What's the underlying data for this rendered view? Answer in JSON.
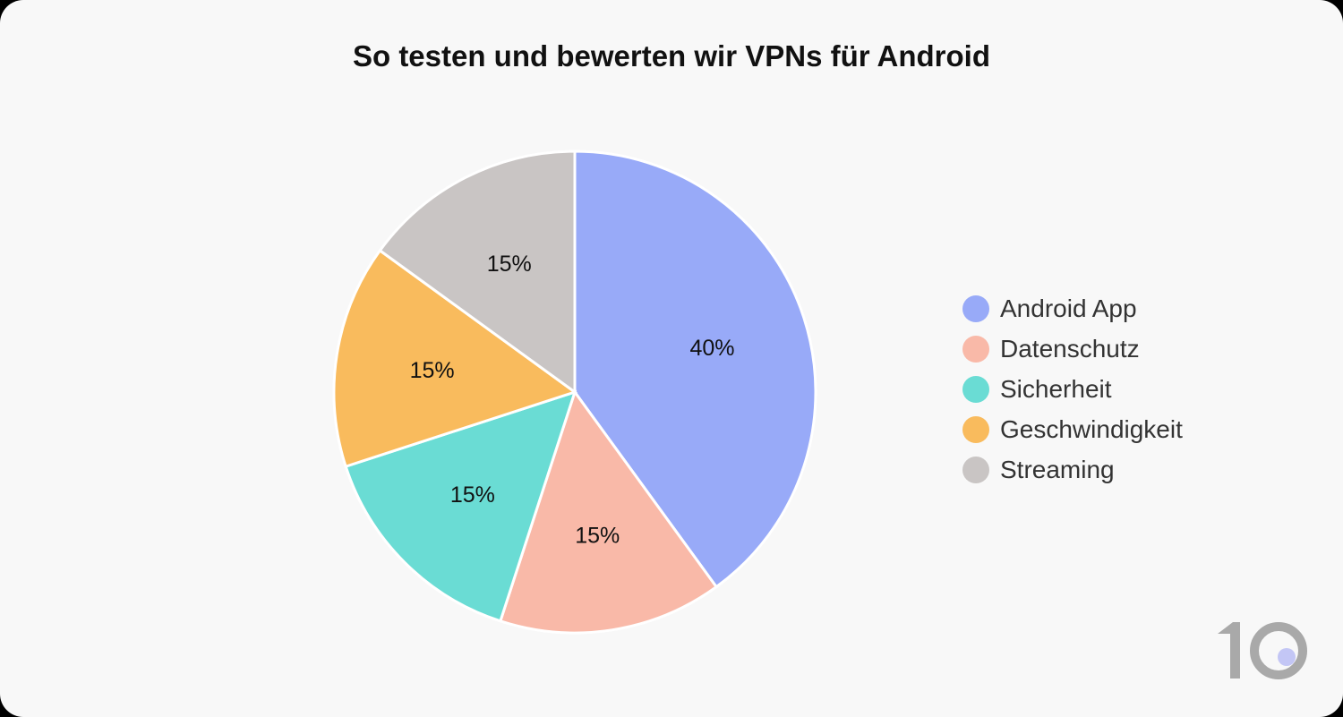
{
  "chart_data": {
    "type": "pie",
    "title": "So testen und bewerten wir VPNs für Android",
    "categories": [
      "Android App",
      "Datenschutz",
      "Sicherheit",
      "Geschwindigkeit",
      "Streaming"
    ],
    "values": [
      40,
      15,
      15,
      15,
      15
    ],
    "labels": [
      "40%",
      "15%",
      "15%",
      "15%",
      "15%"
    ],
    "colors": [
      "#98aaf8",
      "#f9b9a8",
      "#6adcd4",
      "#f9bb5d",
      "#c9c5c4"
    ],
    "start_angle": "12 o'clock",
    "direction": "clockwise",
    "legend": "right"
  },
  "logo": {
    "text": "10",
    "dot_color": "#c3c6f5"
  }
}
